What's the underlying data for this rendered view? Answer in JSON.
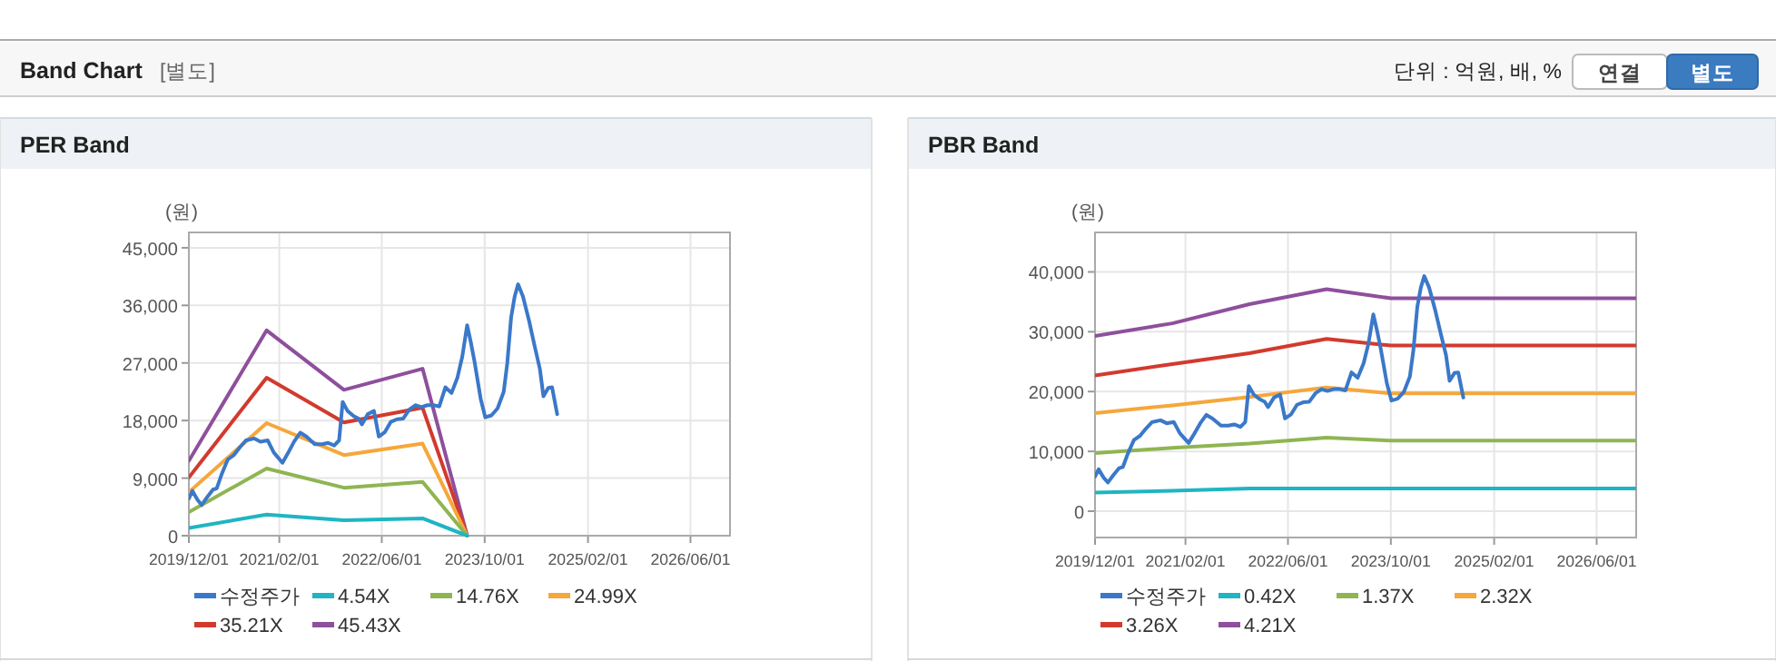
{
  "chart_data": [
    {
      "type": "other",
      "title": "Band Chart",
      "annotations": [
        "[별도]",
        "단위 : 억원, 배, %",
        "연결",
        "별도"
      ]
    },
    {
      "type": "line",
      "title": "PER Band",
      "ylabel": "(원)",
      "grid": true,
      "legend": "bottom",
      "xlim": [
        "2019-12-01",
        "2026-12-05"
      ],
      "xticks": [
        {
          "value": "2019-12-01",
          "label": "2019/12/01"
        },
        {
          "value": "2021-02-01",
          "label": "2021/02/01"
        },
        {
          "value": "2022-06-01",
          "label": "2022/06/01"
        },
        {
          "value": "2023-10-01",
          "label": "2023/10/01"
        },
        {
          "value": "2025-02-01",
          "label": "2025/02/01"
        },
        {
          "value": "2026-06-01",
          "label": "2026/06/01"
        }
      ],
      "ylim": [
        0,
        47400
      ],
      "yticks": [
        0,
        {
          "value": 9000,
          "label": "9,000"
        },
        {
          "value": 18000,
          "label": "18,000"
        },
        {
          "value": 27000,
          "label": "27,000"
        },
        {
          "value": 36000,
          "label": "36,000"
        },
        {
          "value": 45000,
          "label": "45,000"
        }
      ],
      "series": [
        {
          "name": "수정주가",
          "color": "#3a78c9",
          "x": [
            "2019-12-01",
            "2019-12-18",
            "2020-01-11",
            "2020-01-31",
            "2020-02-25",
            "2020-03-24",
            "2020-04-11",
            "2020-05-03",
            "2020-06-02",
            "2020-07-01",
            "2020-07-29",
            "2020-08-27",
            "2020-10-06",
            "2020-11-04",
            "2020-12-08",
            "2021-01-06",
            "2021-02-16",
            "2021-03-14",
            "2021-04-12",
            "2021-05-11",
            "2021-06-09",
            "2021-07-19",
            "2021-08-23",
            "2021-09-20",
            "2021-10-19",
            "2021-11-11",
            "2021-11-28",
            "2021-12-21",
            "2022-01-19",
            "2022-02-11",
            "2022-02-27",
            "2022-03-27",
            "2022-04-25",
            "2022-05-18",
            "2022-06-16",
            "2022-07-14",
            "2022-08-12",
            "2022-09-10",
            "2022-10-09",
            "2022-11-07",
            "2022-12-05",
            "2023-01-03",
            "2023-02-01",
            "2023-02-28",
            "2023-03-29",
            "2023-04-27",
            "2023-05-25",
            "2023-06-17",
            "2023-07-10",
            "2023-07-27",
            "2023-08-14",
            "2023-09-12",
            "2023-10-04",
            "2023-11-02",
            "2023-12-01",
            "2023-12-30",
            "2024-01-16",
            "2024-02-03",
            "2024-02-20",
            "2024-03-07",
            "2024-03-30",
            "2024-04-28",
            "2024-05-26",
            "2024-06-18",
            "2024-07-05",
            "2024-07-28",
            "2024-08-15",
            "2024-09-08"
          ],
          "values": [
            5800,
            7000,
            5600,
            4800,
            6000,
            7200,
            7400,
            9500,
            11900,
            12600,
            13800,
            14900,
            15200,
            14700,
            14900,
            13000,
            11400,
            12900,
            14700,
            16100,
            15500,
            14300,
            14300,
            14500,
            14100,
            14900,
            20900,
            19500,
            18700,
            18300,
            17400,
            19000,
            19500,
            15500,
            16200,
            17800,
            18200,
            18300,
            19700,
            20400,
            20100,
            20400,
            20400,
            20200,
            23200,
            22300,
            24700,
            28000,
            32900,
            30300,
            27200,
            21400,
            18500,
            18800,
            19900,
            22500,
            27000,
            34100,
            37400,
            39300,
            37400,
            33600,
            29400,
            26100,
            21800,
            23100,
            23200,
            19000
          ]
        },
        {
          "name": "4.54X",
          "color": "#1fb5c2",
          "x": [
            "2019-12-01",
            "2020-12-03",
            "2021-12-04",
            "2022-12-11",
            "2023-07-10"
          ],
          "values": [
            1200,
            3300,
            2400,
            2700,
            0
          ]
        },
        {
          "name": "14.76X",
          "color": "#8fb552",
          "x": [
            "2019-12-01",
            "2020-12-03",
            "2021-12-04",
            "2022-12-11",
            "2023-07-10"
          ],
          "values": [
            3700,
            10500,
            7500,
            8400,
            0
          ]
        },
        {
          "name": "24.99X",
          "color": "#f5a73b",
          "x": [
            "2019-12-01",
            "2020-12-03",
            "2021-12-04",
            "2022-12-11",
            "2023-07-10"
          ],
          "values": [
            6800,
            17600,
            12600,
            14400,
            0
          ]
        },
        {
          "name": "35.21X",
          "color": "#d23a2e",
          "x": [
            "2019-12-01",
            "2020-12-03",
            "2021-12-04",
            "2022-12-11",
            "2023-07-10"
          ],
          "values": [
            9100,
            24700,
            17700,
            20000,
            0
          ]
        },
        {
          "name": "45.43X",
          "color": "#8e4f9c",
          "x": [
            "2019-12-01",
            "2020-12-03",
            "2021-12-04",
            "2022-12-11",
            "2023-07-10"
          ],
          "values": [
            11700,
            32100,
            22800,
            26100,
            0
          ]
        }
      ]
    },
    {
      "type": "line",
      "title": "PBR Band",
      "ylabel": "(원)",
      "grid": true,
      "legend": "bottom",
      "xlim": [
        "2019-12-01",
        "2026-12-05"
      ],
      "xticks": [
        {
          "value": "2019-12-01",
          "label": "2019/12/01"
        },
        {
          "value": "2021-02-01",
          "label": "2021/02/01"
        },
        {
          "value": "2022-06-01",
          "label": "2022/06/01"
        },
        {
          "value": "2023-10-01",
          "label": "2023/10/01"
        },
        {
          "value": "2025-02-01",
          "label": "2025/02/01"
        },
        {
          "value": "2026-06-01",
          "label": "2026/06/01"
        }
      ],
      "ylim": [
        -4400,
        46600
      ],
      "yticks": [
        0,
        {
          "value": 10000,
          "label": "10,000"
        },
        {
          "value": 20000,
          "label": "20,000"
        },
        {
          "value": 30000,
          "label": "30,000"
        },
        {
          "value": 40000,
          "label": "40,000"
        }
      ],
      "series": [
        {
          "name": "수정주가",
          "color": "#3a78c9",
          "x": [
            "2019-12-01",
            "2019-12-18",
            "2020-01-11",
            "2020-01-31",
            "2020-02-25",
            "2020-03-24",
            "2020-04-11",
            "2020-05-03",
            "2020-06-02",
            "2020-07-01",
            "2020-07-29",
            "2020-08-27",
            "2020-10-06",
            "2020-11-04",
            "2020-12-08",
            "2021-01-06",
            "2021-02-16",
            "2021-03-14",
            "2021-04-12",
            "2021-05-11",
            "2021-06-09",
            "2021-07-19",
            "2021-08-23",
            "2021-09-20",
            "2021-10-19",
            "2021-11-11",
            "2021-11-28",
            "2021-12-21",
            "2022-01-19",
            "2022-02-11",
            "2022-02-27",
            "2022-03-27",
            "2022-04-25",
            "2022-05-18",
            "2022-06-16",
            "2022-07-14",
            "2022-08-12",
            "2022-09-10",
            "2022-10-09",
            "2022-11-07",
            "2022-12-05",
            "2023-01-03",
            "2023-02-01",
            "2023-02-28",
            "2023-03-29",
            "2023-04-27",
            "2023-05-25",
            "2023-06-17",
            "2023-07-10",
            "2023-07-27",
            "2023-08-14",
            "2023-09-12",
            "2023-10-04",
            "2023-11-02",
            "2023-12-01",
            "2023-12-30",
            "2024-01-16",
            "2024-02-03",
            "2024-02-20",
            "2024-03-07",
            "2024-03-30",
            "2024-04-28",
            "2024-05-26",
            "2024-06-18",
            "2024-07-05",
            "2024-07-28",
            "2024-08-15",
            "2024-09-08"
          ],
          "values": [
            5800,
            7000,
            5600,
            4800,
            6000,
            7200,
            7400,
            9500,
            11900,
            12600,
            13800,
            14900,
            15200,
            14700,
            14900,
            13000,
            11400,
            12900,
            14700,
            16100,
            15500,
            14300,
            14300,
            14500,
            14100,
            14900,
            20900,
            19500,
            18700,
            18300,
            17400,
            19000,
            19500,
            15500,
            16200,
            17800,
            18200,
            18300,
            19700,
            20400,
            20100,
            20400,
            20400,
            20200,
            23200,
            22300,
            24700,
            28000,
            32900,
            30300,
            27200,
            21400,
            18500,
            18800,
            19900,
            22500,
            27000,
            34100,
            37400,
            39300,
            37400,
            33600,
            29400,
            26100,
            21800,
            23100,
            23200,
            19000
          ]
        },
        {
          "name": "0.42X",
          "color": "#1fb5c2",
          "x": [
            "2019-12-01",
            "2020-12-01",
            "2021-12-01",
            "2022-12-01",
            "2023-10-01",
            "2026-12-05"
          ],
          "values": [
            3100,
            3400,
            3800,
            3800,
            3800,
            3800
          ]
        },
        {
          "name": "1.37X",
          "color": "#8fb552",
          "x": [
            "2019-12-01",
            "2020-12-01",
            "2021-12-01",
            "2022-12-01",
            "2023-10-01",
            "2026-12-05"
          ],
          "values": [
            9700,
            10600,
            11300,
            12300,
            11800,
            11800
          ]
        },
        {
          "name": "2.32X",
          "color": "#f5a73b",
          "x": [
            "2019-12-01",
            "2020-12-01",
            "2021-12-01",
            "2022-12-01",
            "2023-10-01",
            "2026-12-05"
          ],
          "values": [
            16400,
            17700,
            19100,
            20700,
            19700,
            19700
          ]
        },
        {
          "name": "3.26X",
          "color": "#d23a2e",
          "x": [
            "2019-12-01",
            "2020-12-01",
            "2021-12-01",
            "2022-12-01",
            "2023-10-01",
            "2026-12-05"
          ],
          "values": [
            22700,
            24600,
            26400,
            28800,
            27700,
            27700
          ]
        },
        {
          "name": "4.21X",
          "color": "#8e4f9c",
          "x": [
            "2019-12-01",
            "2020-12-01",
            "2021-12-01",
            "2022-12-01",
            "2023-10-01",
            "2026-12-05"
          ],
          "values": [
            29300,
            31400,
            34600,
            37100,
            35600,
            35600
          ]
        }
      ]
    }
  ]
}
